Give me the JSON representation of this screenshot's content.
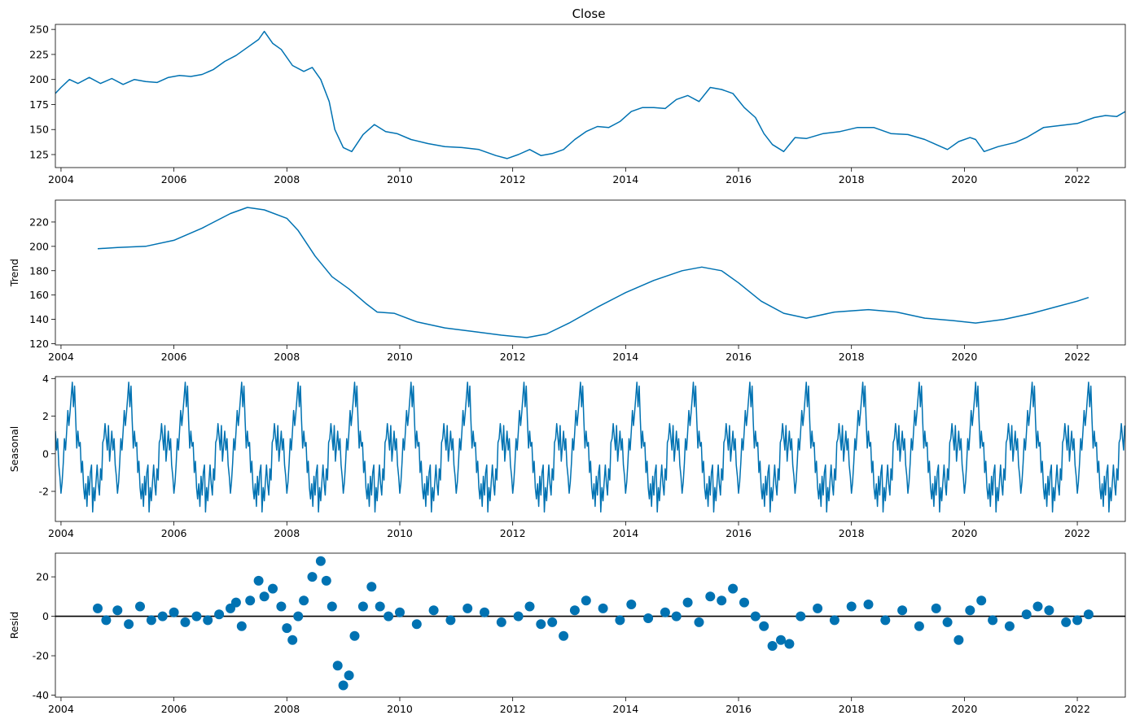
{
  "chart_data": [
    {
      "id": "close",
      "type": "line",
      "title": "Close",
      "ylabel": "",
      "xlim": [
        2003.9,
        2022.85
      ],
      "ylim": [
        112,
        255
      ],
      "xticks": [
        2004,
        2006,
        2008,
        2010,
        2012,
        2014,
        2016,
        2018,
        2020,
        2022
      ],
      "yticks": [
        125,
        150,
        175,
        200,
        225,
        250
      ],
      "color": "#0072b2",
      "x": [
        2003.9,
        2004.0,
        2004.15,
        2004.3,
        2004.5,
        2004.7,
        2004.9,
        2005.1,
        2005.3,
        2005.5,
        2005.7,
        2005.9,
        2006.1,
        2006.3,
        2006.5,
        2006.7,
        2006.9,
        2007.1,
        2007.3,
        2007.5,
        2007.6,
        2007.75,
        2007.9,
        2008.1,
        2008.3,
        2008.45,
        2008.6,
        2008.75,
        2008.85,
        2009.0,
        2009.15,
        2009.35,
        2009.55,
        2009.75,
        2009.95,
        2010.2,
        2010.5,
        2010.8,
        2011.1,
        2011.4,
        2011.7,
        2011.9,
        2012.1,
        2012.3,
        2012.5,
        2012.7,
        2012.9,
        2013.1,
        2013.3,
        2013.5,
        2013.7,
        2013.9,
        2014.1,
        2014.3,
        2014.5,
        2014.7,
        2014.9,
        2015.1,
        2015.3,
        2015.5,
        2015.7,
        2015.9,
        2016.1,
        2016.3,
        2016.45,
        2016.6,
        2016.8,
        2017.0,
        2017.2,
        2017.5,
        2017.8,
        2018.1,
        2018.4,
        2018.7,
        2019.0,
        2019.3,
        2019.5,
        2019.7,
        2019.9,
        2020.1,
        2020.2,
        2020.35,
        2020.6,
        2020.9,
        2021.1,
        2021.4,
        2021.7,
        2022.0,
        2022.3,
        2022.5,
        2022.7,
        2022.85
      ],
      "y": [
        186,
        192,
        200,
        196,
        202,
        196,
        201,
        195,
        200,
        198,
        197,
        202,
        204,
        203,
        205,
        210,
        218,
        224,
        232,
        240,
        248,
        236,
        230,
        214,
        208,
        212,
        200,
        178,
        150,
        132,
        128,
        145,
        155,
        148,
        146,
        140,
        136,
        133,
        132,
        130,
        124,
        121,
        125,
        130,
        124,
        126,
        130,
        140,
        148,
        153,
        152,
        158,
        168,
        172,
        172,
        171,
        180,
        184,
        178,
        192,
        190,
        186,
        172,
        162,
        146,
        135,
        128,
        142,
        141,
        146,
        148,
        152,
        152,
        146,
        145,
        140,
        135,
        130,
        138,
        142,
        140,
        128,
        133,
        137,
        142,
        152,
        154,
        156,
        162,
        164,
        163,
        168
      ]
    },
    {
      "id": "trend",
      "type": "line",
      "title": "",
      "ylabel": "Trend",
      "xlim": [
        2003.9,
        2022.85
      ],
      "ylim": [
        119,
        238
      ],
      "xticks": [
        2004,
        2006,
        2008,
        2010,
        2012,
        2014,
        2016,
        2018,
        2020,
        2022
      ],
      "yticks": [
        120,
        140,
        160,
        180,
        200,
        220
      ],
      "color": "#0072b2",
      "x": [
        2004.65,
        2005.0,
        2005.5,
        2006.0,
        2006.5,
        2007.0,
        2007.3,
        2007.6,
        2008.0,
        2008.2,
        2008.5,
        2008.8,
        2009.1,
        2009.4,
        2009.6,
        2009.9,
        2010.3,
        2010.8,
        2011.3,
        2011.8,
        2012.25,
        2012.6,
        2013.0,
        2013.5,
        2014.0,
        2014.5,
        2015.0,
        2015.35,
        2015.7,
        2016.0,
        2016.4,
        2016.8,
        2017.2,
        2017.7,
        2018.3,
        2018.8,
        2019.3,
        2019.8,
        2020.2,
        2020.7,
        2021.2,
        2021.6,
        2022.0,
        2022.2
      ],
      "y": [
        198,
        199,
        200,
        205,
        215,
        227,
        232,
        230,
        223,
        213,
        192,
        175,
        165,
        153,
        146,
        145,
        138,
        133,
        130,
        127,
        125,
        128,
        137,
        150,
        162,
        172,
        180,
        183,
        180,
        170,
        155,
        145,
        141,
        146,
        148,
        146,
        141,
        139,
        137,
        140,
        145,
        150,
        155,
        158
      ]
    },
    {
      "id": "seasonal",
      "type": "line",
      "title": "",
      "ylabel": "Seasonal",
      "xlim": [
        2003.9,
        2022.85
      ],
      "ylim": [
        -3.6,
        4.1
      ],
      "xticks": [
        2004,
        2006,
        2008,
        2010,
        2012,
        2014,
        2016,
        2018,
        2020,
        2022
      ],
      "yticks": [
        -2,
        0,
        2,
        4
      ],
      "color": "#0072b2",
      "period": 1.0,
      "phase_start": 2003.9,
      "pattern_phase": [
        0.0,
        0.02,
        0.04,
        0.06,
        0.08,
        0.1,
        0.12,
        0.14,
        0.16,
        0.18,
        0.2,
        0.22,
        0.24,
        0.26,
        0.28,
        0.3,
        0.32,
        0.34,
        0.36,
        0.38,
        0.4,
        0.42,
        0.44,
        0.46,
        0.48,
        0.5,
        0.52,
        0.54,
        0.56,
        0.58,
        0.6,
        0.62,
        0.64,
        0.66,
        0.68,
        0.7,
        0.72,
        0.74,
        0.76,
        0.78,
        0.8,
        0.82,
        0.84,
        0.86,
        0.88,
        0.9,
        0.92,
        0.94,
        0.96,
        0.98
      ],
      "pattern_values": [
        1.2,
        0.2,
        0.8,
        -0.6,
        -1.2,
        -2.1,
        -1.5,
        -0.5,
        0.8,
        0.2,
        1.2,
        2.3,
        1.5,
        2.2,
        3.0,
        3.8,
        2.5,
        3.6,
        1.8,
        0.3,
        1.2,
        0.4,
        0.6,
        -1.0,
        -0.4,
        -1.8,
        -2.4,
        -1.6,
        -2.8,
        -1.2,
        -2.2,
        -1.0,
        -0.6,
        -3.1,
        -1.8,
        -2.5,
        -1.5,
        -0.6,
        -1.6,
        -2.2,
        -0.8,
        -1.4,
        0.6,
        0.8,
        1.6,
        0.9,
        0.2,
        1.5,
        -0.4,
        0.4
      ]
    },
    {
      "id": "resid",
      "type": "scatter",
      "title": "",
      "ylabel": "Resid",
      "xlim": [
        2003.9,
        2022.85
      ],
      "ylim": [
        -41,
        32
      ],
      "xticks": [
        2004,
        2006,
        2008,
        2010,
        2012,
        2014,
        2016,
        2018,
        2020,
        2022
      ],
      "yticks": [
        -40,
        -20,
        0,
        20
      ],
      "zero_line": true,
      "color": "#0072b2",
      "x": [
        2004.65,
        2004.8,
        2005.0,
        2005.2,
        2005.4,
        2005.6,
        2005.8,
        2006.0,
        2006.2,
        2006.4,
        2006.6,
        2006.8,
        2007.0,
        2007.1,
        2007.2,
        2007.35,
        2007.5,
        2007.6,
        2007.75,
        2007.9,
        2008.0,
        2008.1,
        2008.2,
        2008.3,
        2008.45,
        2008.6,
        2008.7,
        2008.8,
        2008.9,
        2009.0,
        2009.1,
        2009.2,
        2009.35,
        2009.5,
        2009.65,
        2009.8,
        2010.0,
        2010.3,
        2010.6,
        2010.9,
        2011.2,
        2011.5,
        2011.8,
        2012.1,
        2012.3,
        2012.5,
        2012.7,
        2012.9,
        2013.1,
        2013.3,
        2013.6,
        2013.9,
        2014.1,
        2014.4,
        2014.7,
        2014.9,
        2015.1,
        2015.3,
        2015.5,
        2015.7,
        2015.9,
        2016.1,
        2016.3,
        2016.45,
        2016.6,
        2016.75,
        2016.9,
        2017.1,
        2017.4,
        2017.7,
        2018.0,
        2018.3,
        2018.6,
        2018.9,
        2019.2,
        2019.5,
        2019.7,
        2019.9,
        2020.1,
        2020.3,
        2020.5,
        2020.8,
        2021.1,
        2021.3,
        2021.5,
        2021.8,
        2022.0,
        2022.2
      ],
      "y": [
        4,
        -2,
        3,
        -4,
        5,
        -2,
        0,
        2,
        -3,
        0,
        -2,
        1,
        4,
        7,
        -5,
        8,
        18,
        10,
        14,
        5,
        -6,
        -12,
        0,
        8,
        20,
        28,
        18,
        5,
        -25,
        -35,
        -30,
        -10,
        5,
        15,
        5,
        0,
        2,
        -4,
        3,
        -2,
        4,
        2,
        -3,
        0,
        5,
        -4,
        -3,
        -10,
        3,
        8,
        4,
        -2,
        6,
        -1,
        2,
        0,
        7,
        -3,
        10,
        8,
        14,
        7,
        0,
        -5,
        -15,
        -12,
        -14,
        0,
        4,
        -2,
        5,
        6,
        -2,
        3,
        -5,
        4,
        -3,
        -12,
        3,
        8,
        -2,
        -5,
        1,
        5,
        3,
        -3,
        -2,
        1
      ]
    }
  ]
}
